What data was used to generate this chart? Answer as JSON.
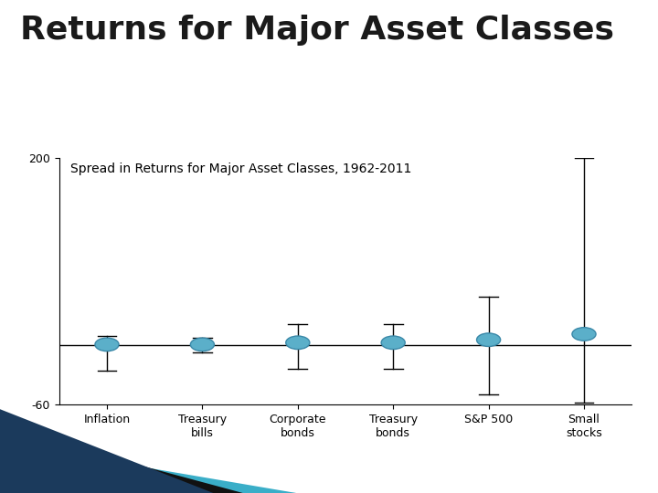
{
  "title": "Returns for Major Asset Classes",
  "subtitle": "Spread in Returns for Major Asset Classes, 1962-2011",
  "categories": [
    "Inflation",
    "Treasury\nbills",
    "Corporate\nbonds",
    "Treasury\nbonds",
    "S&P 500",
    "Small\nstocks"
  ],
  "means": [
    3,
    3,
    5,
    5,
    8,
    14
  ],
  "upper_errors": [
    9,
    7,
    20,
    20,
    45,
    186
  ],
  "lower_errors": [
    28,
    8,
    28,
    28,
    58,
    72
  ],
  "ylim": [
    -60,
    200
  ],
  "yticks": [
    -60,
    200
  ],
  "dot_color": "#5BAFC9",
  "dot_edgecolor": "#3A88A8",
  "line_color": "black",
  "title_color": "#1a1a1a",
  "title_fontsize": 26,
  "subtitle_fontsize": 10,
  "background_color": "#ffffff",
  "band_gold": "#C9A84C",
  "band_navy": "#1B3A5C",
  "zero_line_y": 2,
  "bottom_colors": [
    "#1B3A5C",
    "#000000",
    "#4DAFC9",
    "#8ECFDF"
  ]
}
